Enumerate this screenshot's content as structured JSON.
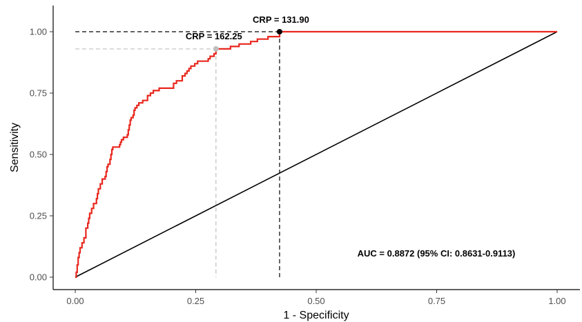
{
  "chart_data": {
    "type": "line",
    "xlabel": "1 - Specificity",
    "ylabel": "Sensitivity",
    "xlim": [
      0,
      1.05
    ],
    "ylim": [
      -0.05,
      1.05
    ],
    "x_ticks": [
      "0.00",
      "0.25",
      "0.50",
      "0.75",
      "1.00"
    ],
    "y_ticks": [
      "0.00",
      "0.25",
      "0.50",
      "0.75",
      "1.00"
    ],
    "grid": false,
    "series": [
      {
        "color": "#e8261c",
        "points": [
          [
            0.0,
            0.0
          ],
          [
            0.002,
            0.02
          ],
          [
            0.004,
            0.05
          ],
          [
            0.006,
            0.08
          ],
          [
            0.008,
            0.1
          ],
          [
            0.01,
            0.12
          ],
          [
            0.014,
            0.14
          ],
          [
            0.018,
            0.16
          ],
          [
            0.022,
            0.2
          ],
          [
            0.026,
            0.22
          ],
          [
            0.028,
            0.24
          ],
          [
            0.03,
            0.26
          ],
          [
            0.034,
            0.28
          ],
          [
            0.038,
            0.3
          ],
          [
            0.044,
            0.32
          ],
          [
            0.046,
            0.34
          ],
          [
            0.048,
            0.36
          ],
          [
            0.052,
            0.38
          ],
          [
            0.056,
            0.4
          ],
          [
            0.062,
            0.41
          ],
          [
            0.064,
            0.43
          ],
          [
            0.066,
            0.45
          ],
          [
            0.068,
            0.46
          ],
          [
            0.072,
            0.48
          ],
          [
            0.074,
            0.5
          ],
          [
            0.076,
            0.52
          ],
          [
            0.078,
            0.53
          ],
          [
            0.092,
            0.54
          ],
          [
            0.094,
            0.55
          ],
          [
            0.096,
            0.56
          ],
          [
            0.1,
            0.57
          ],
          [
            0.106,
            0.57
          ],
          [
            0.108,
            0.58
          ],
          [
            0.11,
            0.6
          ],
          [
            0.112,
            0.62
          ],
          [
            0.114,
            0.64
          ],
          [
            0.116,
            0.65
          ],
          [
            0.12,
            0.66
          ],
          [
            0.122,
            0.68
          ],
          [
            0.124,
            0.69
          ],
          [
            0.128,
            0.7
          ],
          [
            0.132,
            0.71
          ],
          [
            0.14,
            0.72
          ],
          [
            0.15,
            0.74
          ],
          [
            0.156,
            0.75
          ],
          [
            0.162,
            0.76
          ],
          [
            0.174,
            0.77
          ],
          [
            0.2,
            0.77
          ],
          [
            0.204,
            0.79
          ],
          [
            0.21,
            0.8
          ],
          [
            0.222,
            0.82
          ],
          [
            0.228,
            0.83
          ],
          [
            0.232,
            0.84
          ],
          [
            0.236,
            0.85
          ],
          [
            0.24,
            0.86
          ],
          [
            0.248,
            0.87
          ],
          [
            0.254,
            0.88
          ],
          [
            0.274,
            0.88
          ],
          [
            0.276,
            0.89
          ],
          [
            0.28,
            0.9
          ],
          [
            0.288,
            0.91
          ],
          [
            0.292,
            0.93
          ],
          [
            0.31,
            0.93
          ],
          [
            0.322,
            0.94
          ],
          [
            0.34,
            0.95
          ],
          [
            0.364,
            0.96
          ],
          [
            0.378,
            0.97
          ],
          [
            0.4,
            0.98
          ],
          [
            0.42,
            0.98
          ],
          [
            0.424,
            1.0
          ],
          [
            1.0,
            1.0
          ]
        ]
      },
      {
        "color": "#000000",
        "points": [
          [
            0.0,
            0.0
          ],
          [
            1.0,
            1.0
          ]
        ]
      }
    ],
    "cutoffs": [
      {
        "label": "CRP = 131.90",
        "x": 0.424,
        "y": 1.0,
        "color": "#000000"
      },
      {
        "label": "CRP = 162.25",
        "x": 0.292,
        "y": 0.93,
        "color": "#bfbfbf"
      }
    ],
    "annotation": "AUC = 0.8872 (95% CI: 0.8631-0.9113)"
  }
}
